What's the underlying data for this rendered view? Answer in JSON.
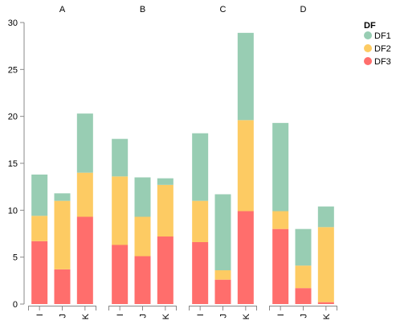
{
  "chart_data": {
    "type": "bar",
    "stacked": true,
    "facets": [
      "A",
      "B",
      "C",
      "D"
    ],
    "categories": [
      "I",
      "J",
      "K"
    ],
    "legend_title": "DF",
    "series": [
      {
        "name": "DF1",
        "color": "#98cdb3",
        "values": [
          [
            4.4,
            0.8,
            6.3
          ],
          [
            4.0,
            4.2,
            0.7
          ],
          [
            7.2,
            8.1,
            9.3
          ],
          [
            9.4,
            3.9,
            2.2
          ]
        ]
      },
      {
        "name": "DF2",
        "color": "#fdcb63",
        "values": [
          [
            2.7,
            7.3,
            4.7
          ],
          [
            7.3,
            4.2,
            5.5
          ],
          [
            4.4,
            1.0,
            9.7
          ],
          [
            1.9,
            2.4,
            8.0
          ]
        ]
      },
      {
        "name": "DF3",
        "color": "#ff6e6c",
        "values": [
          [
            6.7,
            3.7,
            9.3
          ],
          [
            6.3,
            5.1,
            7.2
          ],
          [
            6.6,
            2.6,
            9.9
          ],
          [
            8.0,
            1.7,
            0.2
          ]
        ]
      }
    ],
    "stack_order": "bottom_last_series",
    "ylim": [
      0,
      30
    ],
    "yticks": [
      0,
      5,
      10,
      15,
      20,
      25,
      30
    ],
    "grid": false,
    "legend": "right"
  }
}
